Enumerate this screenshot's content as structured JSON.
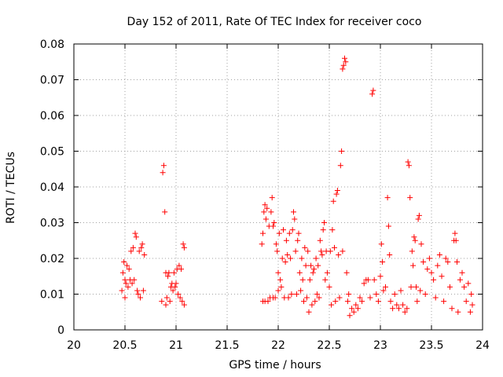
{
  "chart_data": {
    "type": "scatter",
    "title": "Day 152 of 2011, Rate Of TEC Index for receiver coco",
    "xlabel": "GPS time / hours",
    "ylabel": "ROTI / TECUs",
    "xlim": [
      20,
      24
    ],
    "ylim": [
      0,
      0.08
    ],
    "xticks": [
      20,
      20.5,
      21,
      21.5,
      22,
      22.5,
      23,
      23.5,
      24
    ],
    "xtick_labels": [
      "20",
      "20.5",
      "21",
      "21.5",
      "22",
      "22.5",
      "23",
      "23.5",
      "24"
    ],
    "yticks": [
      0,
      0.01,
      0.02,
      0.03,
      0.04,
      0.05,
      0.06,
      0.07,
      0.08
    ],
    "ytick_labels": [
      "0",
      "0.01",
      "0.02",
      "0.03",
      "0.04",
      "0.05",
      "0.06",
      "0.07",
      "0.08"
    ],
    "grid": true,
    "marker": "+",
    "marker_color": "#ff0000",
    "series": [
      {
        "name": "ROTI",
        "points": [
          [
            20.47,
            0.011
          ],
          [
            20.48,
            0.016
          ],
          [
            20.49,
            0.019
          ],
          [
            20.5,
            0.014
          ],
          [
            20.5,
            0.009
          ],
          [
            20.51,
            0.013
          ],
          [
            20.52,
            0.018
          ],
          [
            20.53,
            0.012
          ],
          [
            20.54,
            0.017
          ],
          [
            20.55,
            0.014
          ],
          [
            20.56,
            0.022
          ],
          [
            20.57,
            0.013
          ],
          [
            20.58,
            0.023
          ],
          [
            20.59,
            0.014
          ],
          [
            20.6,
            0.027
          ],
          [
            20.61,
            0.026
          ],
          [
            20.62,
            0.011
          ],
          [
            20.63,
            0.01
          ],
          [
            20.64,
            0.022
          ],
          [
            20.65,
            0.009
          ],
          [
            20.66,
            0.023
          ],
          [
            20.67,
            0.024
          ],
          [
            20.68,
            0.011
          ],
          [
            20.69,
            0.021
          ],
          [
            20.86,
            0.008
          ],
          [
            20.87,
            0.044
          ],
          [
            20.88,
            0.046
          ],
          [
            20.89,
            0.033
          ],
          [
            20.9,
            0.007
          ],
          [
            20.9,
            0.016
          ],
          [
            20.91,
            0.009
          ],
          [
            20.92,
            0.015
          ],
          [
            20.93,
            0.016
          ],
          [
            20.94,
            0.008
          ],
          [
            20.95,
            0.012
          ],
          [
            20.96,
            0.013
          ],
          [
            20.97,
            0.011
          ],
          [
            20.98,
            0.016
          ],
          [
            20.99,
            0.012
          ],
          [
            21.0,
            0.013
          ],
          [
            21.01,
            0.017
          ],
          [
            21.02,
            0.01
          ],
          [
            21.03,
            0.018
          ],
          [
            21.04,
            0.009
          ],
          [
            21.05,
            0.017
          ],
          [
            21.06,
            0.008
          ],
          [
            21.07,
            0.024
          ],
          [
            21.08,
            0.023
          ],
          [
            21.08,
            0.007
          ],
          [
            21.84,
            0.024
          ],
          [
            21.85,
            0.027
          ],
          [
            21.85,
            0.008
          ],
          [
            21.86,
            0.033
          ],
          [
            21.87,
            0.035
          ],
          [
            21.87,
            0.008
          ],
          [
            21.88,
            0.031
          ],
          [
            21.89,
            0.034
          ],
          [
            21.9,
            0.008
          ],
          [
            21.91,
            0.029
          ],
          [
            21.92,
            0.009
          ],
          [
            21.93,
            0.033
          ],
          [
            21.94,
            0.037
          ],
          [
            21.95,
            0.029
          ],
          [
            21.95,
            0.009
          ],
          [
            21.96,
            0.03
          ],
          [
            21.97,
            0.009
          ],
          [
            21.98,
            0.024
          ],
          [
            21.99,
            0.022
          ],
          [
            22.0,
            0.016
          ],
          [
            22.0,
            0.011
          ],
          [
            22.01,
            0.027
          ],
          [
            22.02,
            0.014
          ],
          [
            22.03,
            0.012
          ],
          [
            22.04,
            0.02
          ],
          [
            22.05,
            0.028
          ],
          [
            22.06,
            0.009
          ],
          [
            22.07,
            0.019
          ],
          [
            22.08,
            0.025
          ],
          [
            22.09,
            0.021
          ],
          [
            22.1,
            0.009
          ],
          [
            22.11,
            0.027
          ],
          [
            22.12,
            0.02
          ],
          [
            22.13,
            0.01
          ],
          [
            22.14,
            0.028
          ],
          [
            22.15,
            0.033
          ],
          [
            22.16,
            0.031
          ],
          [
            22.17,
            0.022
          ],
          [
            22.18,
            0.01
          ],
          [
            22.19,
            0.025
          ],
          [
            22.2,
            0.027
          ],
          [
            22.21,
            0.016
          ],
          [
            22.22,
            0.011
          ],
          [
            22.23,
            0.02
          ],
          [
            22.24,
            0.014
          ],
          [
            22.25,
            0.008
          ],
          [
            22.26,
            0.023
          ],
          [
            22.27,
            0.018
          ],
          [
            22.28,
            0.009
          ],
          [
            22.29,
            0.022
          ],
          [
            22.3,
            0.005
          ],
          [
            22.31,
            0.014
          ],
          [
            22.32,
            0.018
          ],
          [
            22.33,
            0.007
          ],
          [
            22.34,
            0.016
          ],
          [
            22.35,
            0.017
          ],
          [
            22.36,
            0.008
          ],
          [
            22.37,
            0.02
          ],
          [
            22.38,
            0.01
          ],
          [
            22.39,
            0.018
          ],
          [
            22.4,
            0.009
          ],
          [
            22.41,
            0.025
          ],
          [
            22.42,
            0.022
          ],
          [
            22.43,
            0.021
          ],
          [
            22.44,
            0.028
          ],
          [
            22.45,
            0.03
          ],
          [
            22.46,
            0.014
          ],
          [
            22.47,
            0.022
          ],
          [
            22.48,
            0.016
          ],
          [
            22.5,
            0.012
          ],
          [
            22.51,
            0.022
          ],
          [
            22.52,
            0.007
          ],
          [
            22.53,
            0.028
          ],
          [
            22.54,
            0.036
          ],
          [
            22.55,
            0.023
          ],
          [
            22.56,
            0.008
          ],
          [
            22.57,
            0.038
          ],
          [
            22.58,
            0.039
          ],
          [
            22.59,
            0.021
          ],
          [
            22.6,
            0.009
          ],
          [
            22.61,
            0.046
          ],
          [
            22.62,
            0.05
          ],
          [
            22.63,
            0.022
          ],
          [
            22.63,
            0.073
          ],
          [
            22.64,
            0.074
          ],
          [
            22.65,
            0.076
          ],
          [
            22.66,
            0.075
          ],
          [
            22.67,
            0.016
          ],
          [
            22.68,
            0.008
          ],
          [
            22.69,
            0.01
          ],
          [
            22.7,
            0.004
          ],
          [
            22.72,
            0.006
          ],
          [
            22.74,
            0.005
          ],
          [
            22.76,
            0.007
          ],
          [
            22.78,
            0.006
          ],
          [
            22.8,
            0.009
          ],
          [
            22.82,
            0.008
          ],
          [
            22.84,
            0.013
          ],
          [
            22.86,
            0.014
          ],
          [
            22.88,
            0.014
          ],
          [
            22.9,
            0.009
          ],
          [
            22.92,
            0.066
          ],
          [
            22.93,
            0.067
          ],
          [
            22.94,
            0.014
          ],
          [
            22.96,
            0.01
          ],
          [
            22.98,
            0.008
          ],
          [
            23.0,
            0.015
          ],
          [
            23.01,
            0.024
          ],
          [
            23.02,
            0.019
          ],
          [
            23.03,
            0.011
          ],
          [
            23.05,
            0.012
          ],
          [
            23.07,
            0.037
          ],
          [
            23.08,
            0.029
          ],
          [
            23.09,
            0.021
          ],
          [
            23.1,
            0.008
          ],
          [
            23.12,
            0.006
          ],
          [
            23.14,
            0.01
          ],
          [
            23.16,
            0.007
          ],
          [
            23.18,
            0.006
          ],
          [
            23.2,
            0.011
          ],
          [
            23.22,
            0.007
          ],
          [
            23.24,
            0.005
          ],
          [
            23.26,
            0.006
          ],
          [
            23.27,
            0.047
          ],
          [
            23.28,
            0.046
          ],
          [
            23.29,
            0.037
          ],
          [
            23.3,
            0.012
          ],
          [
            23.31,
            0.022
          ],
          [
            23.32,
            0.018
          ],
          [
            23.33,
            0.026
          ],
          [
            23.34,
            0.025
          ],
          [
            23.35,
            0.012
          ],
          [
            23.36,
            0.008
          ],
          [
            23.37,
            0.031
          ],
          [
            23.38,
            0.032
          ],
          [
            23.39,
            0.011
          ],
          [
            23.4,
            0.024
          ],
          [
            23.42,
            0.019
          ],
          [
            23.44,
            0.01
          ],
          [
            23.46,
            0.017
          ],
          [
            23.48,
            0.02
          ],
          [
            23.5,
            0.016
          ],
          [
            23.52,
            0.014
          ],
          [
            23.54,
            0.009
          ],
          [
            23.56,
            0.018
          ],
          [
            23.58,
            0.021
          ],
          [
            23.6,
            0.015
          ],
          [
            23.62,
            0.008
          ],
          [
            23.64,
            0.02
          ],
          [
            23.66,
            0.019
          ],
          [
            23.68,
            0.012
          ],
          [
            23.7,
            0.006
          ],
          [
            23.72,
            0.025
          ],
          [
            23.73,
            0.027
          ],
          [
            23.74,
            0.025
          ],
          [
            23.75,
            0.019
          ],
          [
            23.76,
            0.005
          ],
          [
            23.78,
            0.014
          ],
          [
            23.8,
            0.016
          ],
          [
            23.82,
            0.012
          ],
          [
            23.84,
            0.008
          ],
          [
            23.86,
            0.013
          ],
          [
            23.88,
            0.005
          ],
          [
            23.89,
            0.01
          ],
          [
            23.9,
            0.007
          ]
        ]
      }
    ]
  }
}
